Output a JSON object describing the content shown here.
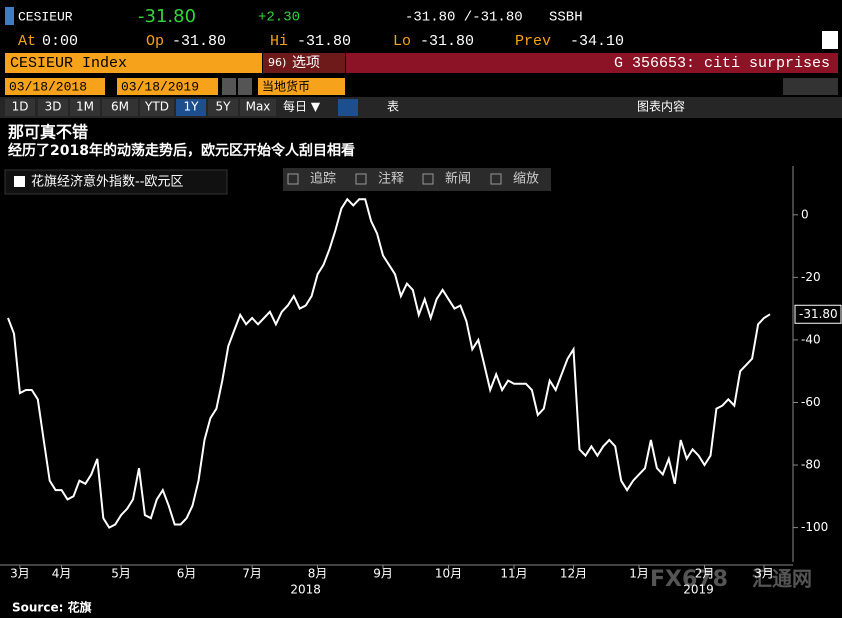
{
  "header": {
    "ticker": "CESIEUR",
    "last": "-31.80",
    "change": "+2.30",
    "bid_ask": "-31.80 /-31.80",
    "source": "SSBH",
    "stats": [
      {
        "label": "At",
        "value": "0:00"
      },
      {
        "label": "Op",
        "value": "-31.80"
      },
      {
        "label": "Hi",
        "value": "-31.80"
      },
      {
        "label": "Lo",
        "value": "-31.80"
      },
      {
        "label": "Prev",
        "value": "-34.10"
      }
    ]
  },
  "toolbar": {
    "security": "CESIEUR Index",
    "menu": "96)",
    "menu_label": "选项",
    "chart_name": "G 356653: citi surprises"
  },
  "dates": {
    "start": "03/18/2018",
    "end": "03/18/2019",
    "currency": "当地货币"
  },
  "periods": [
    "1D",
    "3D",
    "1M",
    "6M",
    "YTD",
    "1Y",
    "5Y",
    "Max"
  ],
  "selected_period": 5,
  "frequency": "每日 ▼",
  "table_button": "表",
  "chart_content": "图表内容",
  "chart_tools": [
    "追踪",
    "注释",
    "新闻",
    "缩放"
  ],
  "source": "Source: 花旗",
  "watermark": [
    "FX678",
    "汇通网"
  ],
  "chart_data": {
    "type": "line",
    "title": "那可真不错",
    "subtitle": "经历了2018年的动荡走势后，欧元区开始令人刮目相看",
    "series": [
      {
        "name": "花旗经济意外指数--欧元区",
        "color": "#ffffff",
        "values": [
          -33,
          -38,
          -57,
          -56,
          -56,
          -59,
          -72,
          -85,
          -88,
          -88,
          -91,
          -90,
          -85,
          -86,
          -83,
          -78,
          -97,
          -100,
          -99,
          -96,
          -94,
          -91,
          -81,
          -96,
          -97,
          -91,
          -88,
          -93,
          -99,
          -99,
          -97,
          -93,
          -85,
          -72,
          -65,
          -62,
          -53,
          -42,
          -37,
          -32,
          -35,
          -33,
          -35,
          -33,
          -31,
          -35,
          -31,
          -29,
          -26,
          -30,
          -29,
          -26,
          -19,
          -16,
          -11,
          -5,
          2,
          5,
          3,
          5,
          5,
          -2,
          -6,
          -13,
          -16,
          -19,
          -26,
          -22,
          -24,
          -32,
          -27,
          -33,
          -27,
          -24,
          -27,
          -30,
          -29,
          -34,
          -43,
          -40,
          -48,
          -56,
          -51,
          -56,
          -53,
          -54,
          -54,
          -54,
          -56,
          -64,
          -62,
          -53,
          -56,
          -51,
          -46,
          -43,
          -75,
          -77,
          -74,
          -77,
          -74,
          -72,
          -74,
          -85,
          -88,
          -85,
          -83,
          -81,
          -72,
          -81,
          -83,
          -78,
          -86,
          -72,
          -78,
          -75,
          -77,
          -80,
          -77,
          -62,
          -61,
          -59,
          -61,
          -50,
          -48,
          -46,
          -35,
          -33,
          -31.8
        ],
        "last_label": "-31.80"
      }
    ],
    "xlim": [
      0,
      128
    ],
    "xticks": [
      {
        "value": 2,
        "label": "3月"
      },
      {
        "value": 9,
        "label": "4月"
      },
      {
        "value": 19,
        "label": "5月"
      },
      {
        "value": 30,
        "label": "6月"
      },
      {
        "value": 41,
        "label": "7月"
      },
      {
        "value": 52,
        "label": "8月"
      },
      {
        "value": 63,
        "label": "9月"
      },
      {
        "value": 74,
        "label": "10月"
      },
      {
        "value": 85,
        "label": "11月"
      },
      {
        "value": 95,
        "label": "12月"
      },
      {
        "value": 106,
        "label": "1月"
      },
      {
        "value": 117,
        "label": "2月"
      },
      {
        "value": 127,
        "label": "3月"
      }
    ],
    "year_labels": [
      {
        "value": 50,
        "label": "2018"
      },
      {
        "value": 116,
        "label": "2019"
      }
    ],
    "ylim": [
      -111,
      14
    ],
    "yticks": [
      0,
      -20,
      -40,
      -60,
      -80,
      -100
    ],
    "grid": false
  }
}
